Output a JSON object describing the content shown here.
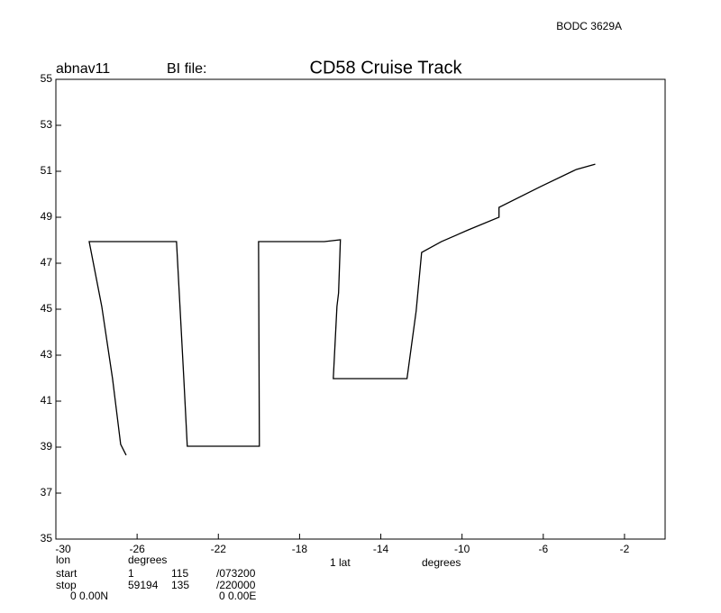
{
  "chart_data": {
    "type": "line",
    "title": "CD58 Cruise Track",
    "annotations": [
      "BODC 3629A",
      "abnav11",
      "BI file:"
    ],
    "footer": [
      [
        "lon",
        "degrees",
        "1 lat",
        "degrees"
      ],
      [
        "start",
        "1",
        "115",
        "/073200"
      ],
      [
        "stop",
        "59194",
        "135",
        "/220000"
      ],
      [
        "0 0.00N",
        "0 0.00E"
      ]
    ],
    "x": [
      -26.54,
      -26.81,
      -27.21,
      -27.74,
      -28.36,
      -24.06,
      -23.7,
      -23.53,
      -19.98,
      -20.02,
      -16.78,
      -15.99,
      -16.08,
      -16.16,
      -16.34,
      -12.71,
      -12.26,
      -11.99,
      -11.02,
      -9.69,
      -8.18,
      -8.18,
      -6.14,
      -4.37,
      -3.44
    ],
    "values": [
      38.65,
      39.12,
      41.98,
      45.12,
      47.94,
      47.94,
      41.98,
      39.04,
      39.04,
      47.94,
      47.94,
      48.02,
      45.71,
      45.12,
      41.98,
      41.98,
      44.92,
      47.47,
      47.94,
      48.45,
      49.0,
      49.43,
      50.33,
      51.08,
      51.31
    ],
    "color": "#000000",
    "xlim": [
      -30,
      0
    ],
    "xticks": [
      -30,
      -26,
      -22,
      -18,
      -14,
      -10,
      -6,
      -2
    ],
    "ylim": [
      35,
      55
    ],
    "yticks": [
      35,
      37,
      39,
      41,
      43,
      45,
      47,
      49,
      51,
      53,
      55
    ]
  }
}
